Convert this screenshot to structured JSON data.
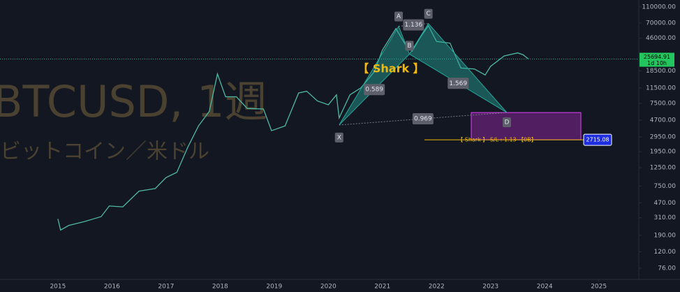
{
  "chart_data": {
    "type": "line",
    "title": "BTCUSD, 1週",
    "subtitle": "ビットコイン／米ドル",
    "log_scale": true,
    "grid": false,
    "color": "#4fb8a4",
    "xlim": [
      2013.93,
      2025.74
    ],
    "xticks": [
      2015,
      2016,
      2017,
      2018,
      2019,
      2020,
      2021,
      2022,
      2023,
      2024,
      2025
    ],
    "ylim": [
      55.7,
      133000
    ],
    "yticks": [
      {
        "value": 110000,
        "label": "110000.00"
      },
      {
        "value": 70000,
        "label": "70000.00"
      },
      {
        "value": 46000,
        "label": "46000.00"
      },
      {
        "value": 18500,
        "label": "18500.00"
      },
      {
        "value": 11500,
        "label": "11500.00"
      },
      {
        "value": 7500,
        "label": "7500.00"
      },
      {
        "value": 4700,
        "label": "4700.00"
      },
      {
        "value": 2950,
        "label": "2950.00"
      },
      {
        "value": 1950,
        "label": "1950.00"
      },
      {
        "value": 1250,
        "label": "1250.00"
      },
      {
        "value": 750,
        "label": "750.00"
      },
      {
        "value": 470,
        "label": "470.00"
      },
      {
        "value": 310,
        "label": "310.00"
      },
      {
        "value": 190,
        "label": "190.00"
      },
      {
        "value": 120,
        "label": "120.00"
      },
      {
        "value": 76,
        "label": "76.00"
      }
    ],
    "x": [
      2015.0,
      2015.05,
      2015.2,
      2015.5,
      2015.8,
      2015.95,
      2016.2,
      2016.5,
      2016.8,
      2017.0,
      2017.2,
      2017.4,
      2017.6,
      2017.8,
      2017.95,
      2018.1,
      2018.3,
      2018.5,
      2018.8,
      2018.95,
      2019.2,
      2019.45,
      2019.6,
      2019.8,
      2020.0,
      2020.15,
      2020.2,
      2020.4,
      2020.6,
      2020.85,
      2021.0,
      2021.25,
      2021.45,
      2021.55,
      2021.7,
      2021.85,
      2022.0,
      2022.25,
      2022.45,
      2022.7,
      2022.9,
      2023.0,
      2023.25,
      2023.5,
      2023.6,
      2023.7
    ],
    "values": [
      300,
      220,
      250,
      280,
      320,
      430,
      420,
      650,
      700,
      950,
      1100,
      2200,
      4000,
      6000,
      17000,
      9000,
      9000,
      6500,
      6400,
      3500,
      4000,
      10000,
      10500,
      8000,
      7200,
      9500,
      5000,
      9500,
      11500,
      18000,
      33000,
      60000,
      36000,
      32000,
      47000,
      65000,
      42000,
      40000,
      20000,
      19500,
      16500,
      21000,
      28000,
      30500,
      29000,
      25700
    ],
    "last_price": 25694.91,
    "countdown": "1d 10h",
    "pattern": {
      "name": "【 Shark 】",
      "points": [
        {
          "label": "X",
          "x": 2020.2,
          "y": 4100
        },
        {
          "label": "A",
          "x": 2021.3,
          "y": 64000
        },
        {
          "label": "B",
          "x": 2021.5,
          "y": 29500
        },
        {
          "label": "C",
          "x": 2021.85,
          "y": 69000
        },
        {
          "label": "D",
          "x": 2023.3,
          "y": 5800
        }
      ],
      "ratios": [
        0.589,
        1.136,
        0.969,
        1.569
      ]
    },
    "stop_loss": {
      "label": "【 Shark 】 S/L : 1.13 【0B】",
      "value": 2715.08
    }
  }
}
